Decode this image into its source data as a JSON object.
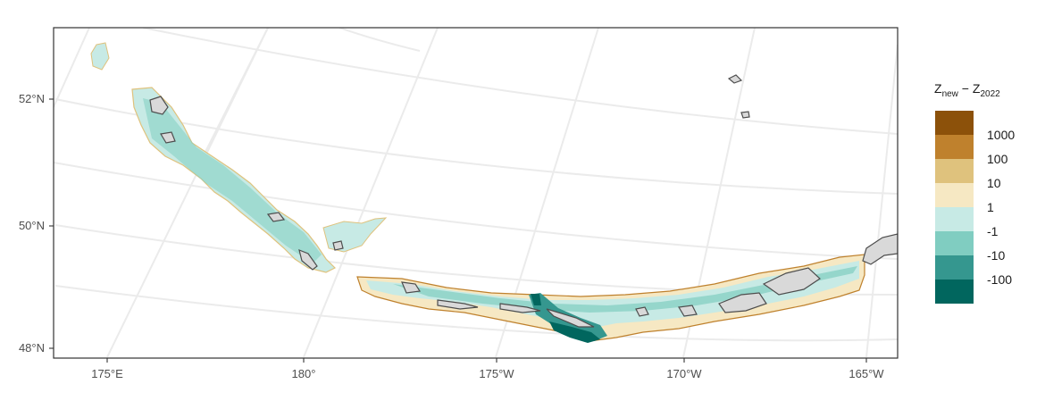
{
  "map": {
    "y_labels": [
      "52°N",
      "50°N",
      "48°N"
    ],
    "x_labels": [
      "175°E",
      "180°",
      "175°W",
      "170°W",
      "165°W"
    ]
  },
  "legend": {
    "title_base": "Z",
    "title_sub_new": "new",
    "title_minus": " − ",
    "title_sub_ref": "2022",
    "breaks": [
      "1000",
      "100",
      "10",
      "1",
      "-1",
      "-10",
      "-100"
    ],
    "colors": [
      "#8c510a",
      "#bf812d",
      "#dfc27d",
      "#f6e8c3",
      "#c7eae5",
      "#80cdc1",
      "#35978f",
      "#01665e"
    ]
  },
  "colors": {
    "land": "#d9d9d9",
    "land_outline": "#4d4d4d",
    "graticule": "#ebebeb",
    "panel_border": "#333333"
  }
}
